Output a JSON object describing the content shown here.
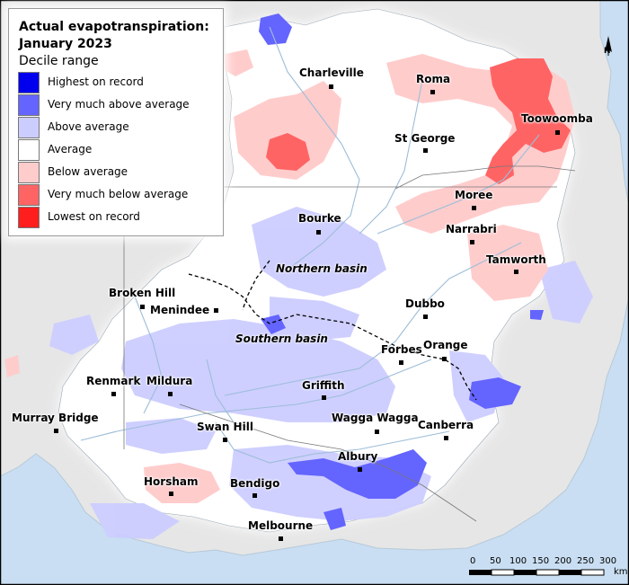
{
  "legend": {
    "title_line1": "Actual evapotranspiration:",
    "title_line2": "January 2023",
    "subtitle": "Decile range",
    "items": [
      {
        "label": "Highest on record",
        "color": "#0000ee"
      },
      {
        "label": "Very much above average",
        "color": "#6464ff"
      },
      {
        "label": "Above average",
        "color": "#cccdff"
      },
      {
        "label": "Average",
        "color": "#ffffff"
      },
      {
        "label": "Below average",
        "color": "#ffcccc"
      },
      {
        "label": "Very much below average",
        "color": "#ff6464"
      },
      {
        "label": "Lowest on record",
        "color": "#ff1e1e"
      }
    ]
  },
  "towns": {
    "charleville": "Charleville",
    "roma": "Roma",
    "toowoomba": "Toowoomba",
    "st_george": "St George",
    "moree": "Moree",
    "bourke": "Bourke",
    "narrabri": "Narrabri",
    "tamworth": "Tamworth",
    "broken_hill": "Broken Hill",
    "menindee": "Menindee",
    "dubbo": "Dubbo",
    "forbes": "Forbes",
    "orange": "Orange",
    "renmark": "Renmark",
    "mildura": "Mildura",
    "griffith": "Griffith",
    "murray_bridge": "Murray Bridge",
    "swan_hill": "Swan Hill",
    "wagga_wagga": "Wagga Wagga",
    "canberra": "Canberra",
    "albury": "Albury",
    "horsham": "Horsham",
    "bendigo": "Bendigo",
    "melbourne": "Melbourne"
  },
  "basins": {
    "northern": "Northern basin",
    "southern": "Southern basin"
  },
  "scale_bar": {
    "ticks": [
      "0",
      "50",
      "100",
      "150",
      "200",
      "250",
      "300"
    ],
    "unit": "km"
  },
  "north_arrow": {
    "label": "N"
  },
  "colors": {
    "ocean": "#c9def2",
    "land_outside_basin": "#e6e6e6",
    "basin_fill": "#ffffff",
    "river": "#9dbdd8"
  }
}
